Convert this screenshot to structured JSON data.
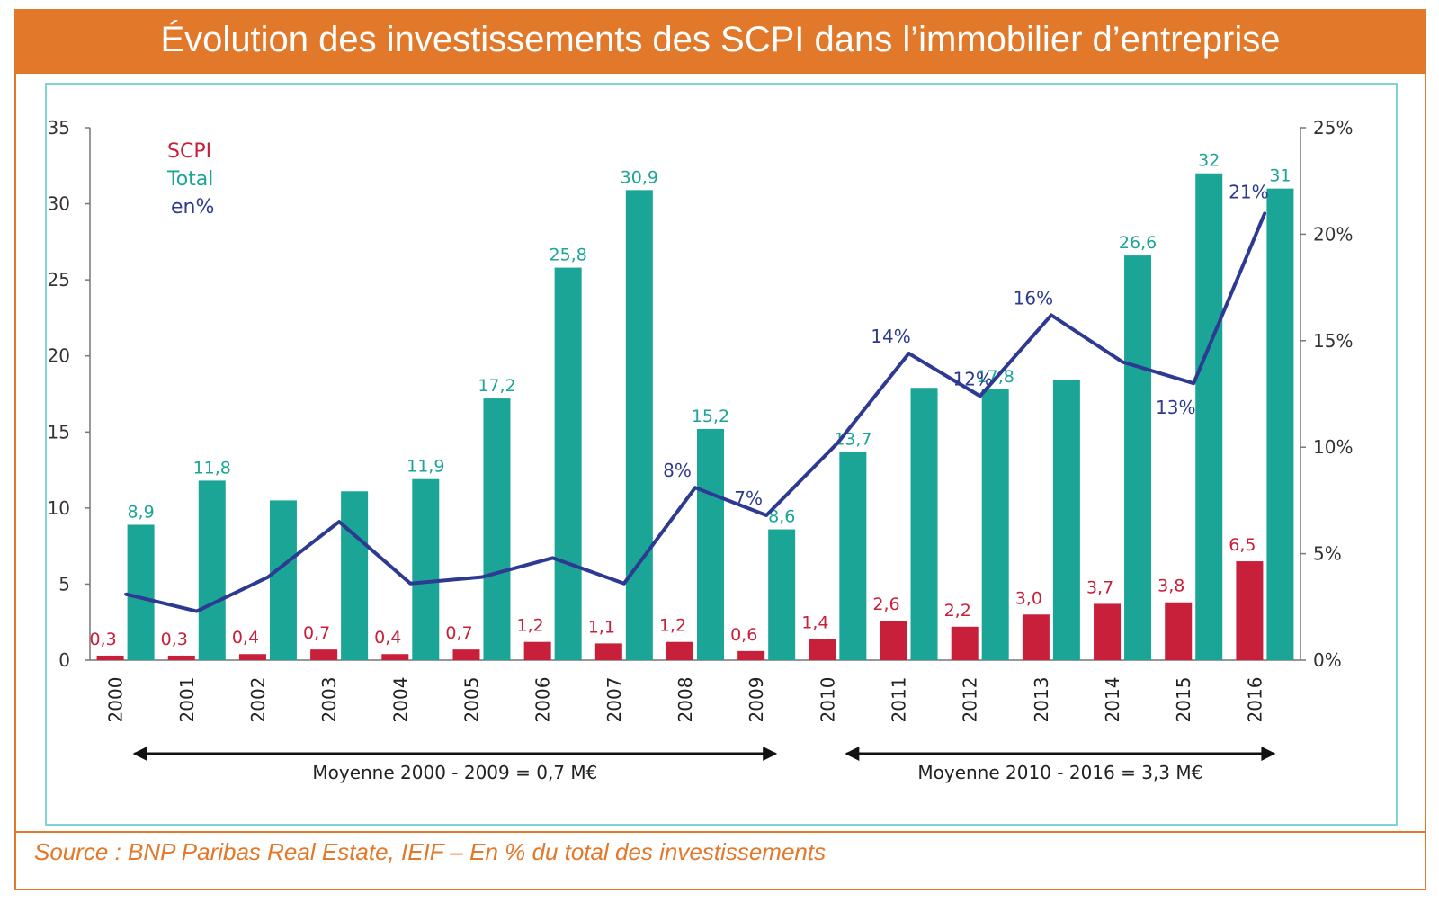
{
  "title": "Évolution des investissements des SCPI dans l’immobilier d’entreprise",
  "source": "Source : BNP Paribas Real Estate, IEIF – En % du total des investissements",
  "colors": {
    "scpi": "#c8203a",
    "total": "#1aa596",
    "pct": "#2e3a92",
    "orange": "#e2782a"
  },
  "legend": {
    "scpi": "SCPI",
    "total": "Total",
    "pct": "en%"
  },
  "chart_data": {
    "type": "bar",
    "categories": [
      "2000",
      "2001",
      "2002",
      "2003",
      "2004",
      "2005",
      "2006",
      "2007",
      "2008",
      "2009",
      "2010",
      "2011",
      "2012",
      "2013",
      "2014",
      "2015",
      "2016"
    ],
    "series": [
      {
        "name": "SCPI",
        "values": [
          0.3,
          0.3,
          0.4,
          0.7,
          0.4,
          0.7,
          1.2,
          1.1,
          1.2,
          0.6,
          1.4,
          2.6,
          2.2,
          3.0,
          3.7,
          3.8,
          6.5
        ],
        "labels": [
          "0,3",
          "0,3",
          "0,4",
          "0,7",
          "0,4",
          "0,7",
          "1,2",
          "1,1",
          "1,2",
          "0,6",
          "1,4",
          "2,6",
          "2,2",
          "3,0",
          "3,7",
          "3,8",
          "6,5"
        ]
      },
      {
        "name": "Total",
        "values": [
          8.9,
          11.8,
          10.5,
          11.1,
          11.9,
          17.2,
          25.8,
          30.9,
          15.2,
          8.6,
          13.7,
          17.9,
          17.8,
          18.4,
          26.6,
          32,
          31
        ],
        "labels": [
          "8,9",
          "11,8",
          "",
          "",
          "11,9",
          "17,2",
          "25,8",
          "30,9",
          "15,2",
          "8,6",
          "13,7",
          "",
          "17,8",
          "",
          "26,6",
          "32",
          "31"
        ]
      },
      {
        "name": "en%",
        "type": "line",
        "axis": "right",
        "values": [
          3.1,
          2.3,
          3.9,
          6.5,
          3.6,
          3.9,
          4.8,
          3.6,
          8.1,
          6.8,
          10.2,
          14.4,
          12.4,
          16.2,
          14.0,
          13.0,
          21.0
        ],
        "labels": [
          "",
          "",
          "",
          "",
          "",
          "",
          "",
          "",
          "8%",
          "7%",
          "",
          "14%",
          "12%",
          "16%",
          "",
          "13%",
          "21%"
        ]
      }
    ],
    "y_left": {
      "min": 0,
      "max": 35,
      "ticks": [
        "0",
        "5",
        "10",
        "15",
        "20",
        "25",
        "30",
        "35"
      ]
    },
    "y_right": {
      "min": 0,
      "max": 25,
      "ticks": [
        "0%",
        "5%",
        "10%",
        "15%",
        "20%",
        "25%"
      ]
    },
    "annotations": [
      {
        "text": "Moyenne 2000 - 2009 = 0,7 M€",
        "from": "2000",
        "to": "2009"
      },
      {
        "text": "Moyenne 2010 - 2016 = 3,3 M€",
        "from": "2010",
        "to": "2016"
      }
    ],
    "legend_position": "top-left",
    "grid": false
  }
}
